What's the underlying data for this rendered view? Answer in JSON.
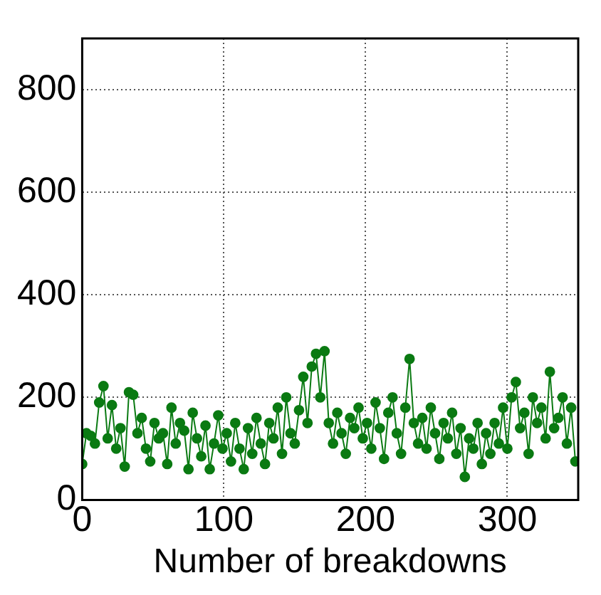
{
  "chart_data": {
    "type": "line",
    "xlabel": "Number of breakdowns",
    "x": [
      0,
      3,
      6,
      9,
      12,
      15,
      18,
      21,
      24,
      27,
      30,
      33,
      36,
      39,
      42,
      45,
      48,
      51,
      54,
      57,
      60,
      63,
      66,
      69,
      72,
      75,
      78,
      81,
      84,
      87,
      90,
      93,
      96,
      99,
      102,
      105,
      108,
      111,
      114,
      117,
      120,
      123,
      126,
      129,
      132,
      135,
      138,
      141,
      144,
      147,
      150,
      153,
      156,
      159,
      162,
      165,
      168,
      171,
      174,
      177,
      180,
      183,
      186,
      189,
      192,
      195,
      198,
      201,
      204,
      207,
      210,
      213,
      216,
      219,
      222,
      225,
      228,
      231,
      234,
      237,
      240,
      243,
      246,
      249,
      252,
      255,
      258,
      261,
      264,
      267,
      270,
      273,
      276,
      279,
      282,
      285,
      288,
      291,
      294,
      297,
      300,
      303,
      306,
      309,
      312,
      315,
      318,
      321,
      324,
      327,
      330,
      333,
      336,
      339,
      342,
      345,
      348
    ],
    "series": [
      {
        "color": "#0a7a12",
        "values": [
          70,
          130,
          125,
          110,
          190,
          222,
          120,
          185,
          100,
          140,
          65,
          210,
          205,
          130,
          160,
          100,
          75,
          150,
          120,
          130,
          70,
          180,
          110,
          150,
          135,
          60,
          170,
          120,
          85,
          145,
          60,
          110,
          165,
          100,
          130,
          75,
          150,
          100,
          60,
          140,
          90,
          160,
          110,
          70,
          150,
          120,
          180,
          90,
          200,
          130,
          110,
          175,
          240,
          150,
          260,
          285,
          200,
          290,
          150,
          110,
          170,
          130,
          90,
          160,
          140,
          180,
          120,
          150,
          100,
          190,
          140,
          80,
          170,
          200,
          130,
          90,
          180,
          275,
          150,
          110,
          160,
          100,
          180,
          130,
          80,
          150,
          120,
          170,
          90,
          140,
          45,
          120,
          100,
          150,
          70,
          130,
          90,
          150,
          110,
          180,
          100,
          200,
          230,
          140,
          170,
          90,
          200,
          150,
          180,
          120,
          250,
          140,
          160,
          200,
          110,
          180,
          75
        ]
      }
    ],
    "xlim": [
      0,
      350
    ],
    "xticks": [
      0,
      100,
      200,
      300
    ],
    "ylim": [
      0,
      900
    ],
    "yticks": [
      0,
      200,
      400,
      600,
      800
    ],
    "grid": true,
    "legend": false,
    "marker": "circle",
    "line_style": "solid"
  }
}
